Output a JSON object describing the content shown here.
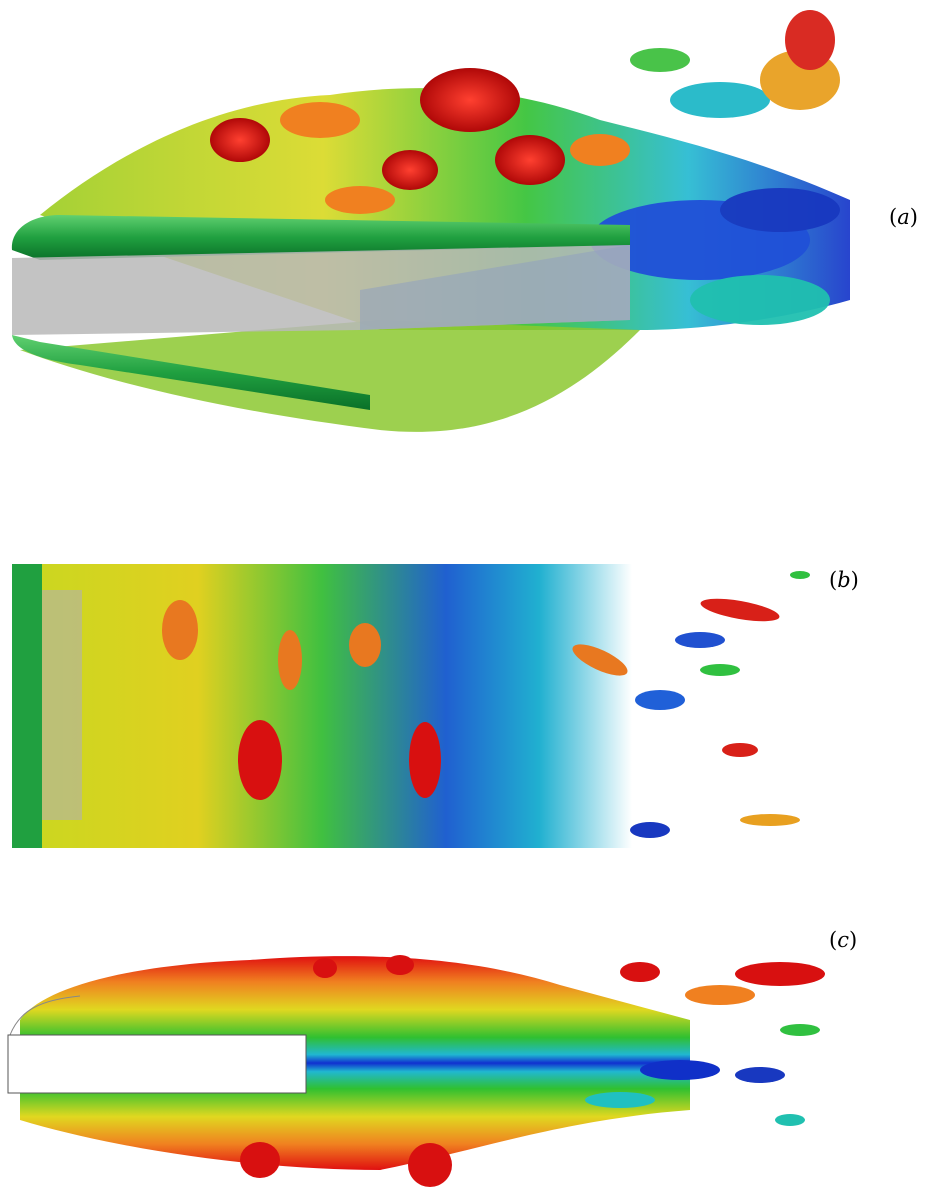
{
  "figure": {
    "panels": [
      {
        "id": "a",
        "paren_open": "(",
        "letter": "a",
        "paren_close": ")"
      },
      {
        "id": "b",
        "paren_open": "(",
        "letter": "b",
        "paren_close": ")"
      },
      {
        "id": "c",
        "paren_open": "(",
        "letter": "c",
        "paren_close": ")"
      }
    ],
    "colors": {
      "red": "#e01010",
      "orange": "#f07818",
      "yellow": "#e8e020",
      "green": "#30c030",
      "cyan": "#20c0d0",
      "blue": "#1030d0",
      "cylinder_green": "#20a040",
      "gray_face": "#b8b8b8"
    }
  }
}
